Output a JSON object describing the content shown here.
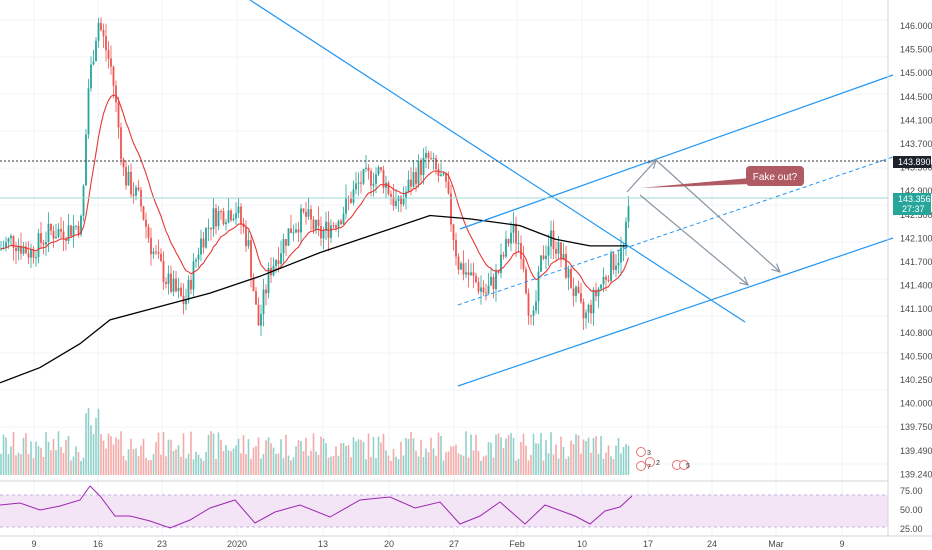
{
  "chart_data": {
    "type": "candlestick",
    "price_axis": {
      "ticks": [
        "146.000",
        "145.500",
        "145.000",
        "144.500",
        "144.100",
        "143.700",
        "143.300",
        "142.900",
        "142.500",
        "142.100",
        "141.700",
        "141.400",
        "141.100",
        "140.800",
        "140.500",
        "140.250",
        "140.000",
        "139.750",
        "139.490",
        "139.240"
      ],
      "current_price": "143.356",
      "countdown": "27:37",
      "marked_level": "143.890"
    },
    "rsi_axis": {
      "ticks": [
        "75.00",
        "50.00",
        "25.00"
      ],
      "upper": 70,
      "lower": 30
    },
    "date_axis": [
      "9",
      "16",
      "23",
      "2020",
      "13",
      "20",
      "27",
      "Feb",
      "10",
      "17",
      "24",
      "Mar",
      "9"
    ],
    "annotation": "Fake out?",
    "event_labels": [
      "3",
      "2",
      "7",
      "3",
      "5"
    ],
    "colors": {
      "up": "#26a69a",
      "down": "#ef5350",
      "ema_short": "#e53935",
      "sma_long": "#000000",
      "trendline": "#2196f3",
      "arrow": "#8a96a3",
      "rsi": "#9c27b0",
      "rsi_band": "#f3e5f5",
      "callout": "#b05a63",
      "price_badge": "#26a69a",
      "level_badge": "#1e222d"
    }
  }
}
